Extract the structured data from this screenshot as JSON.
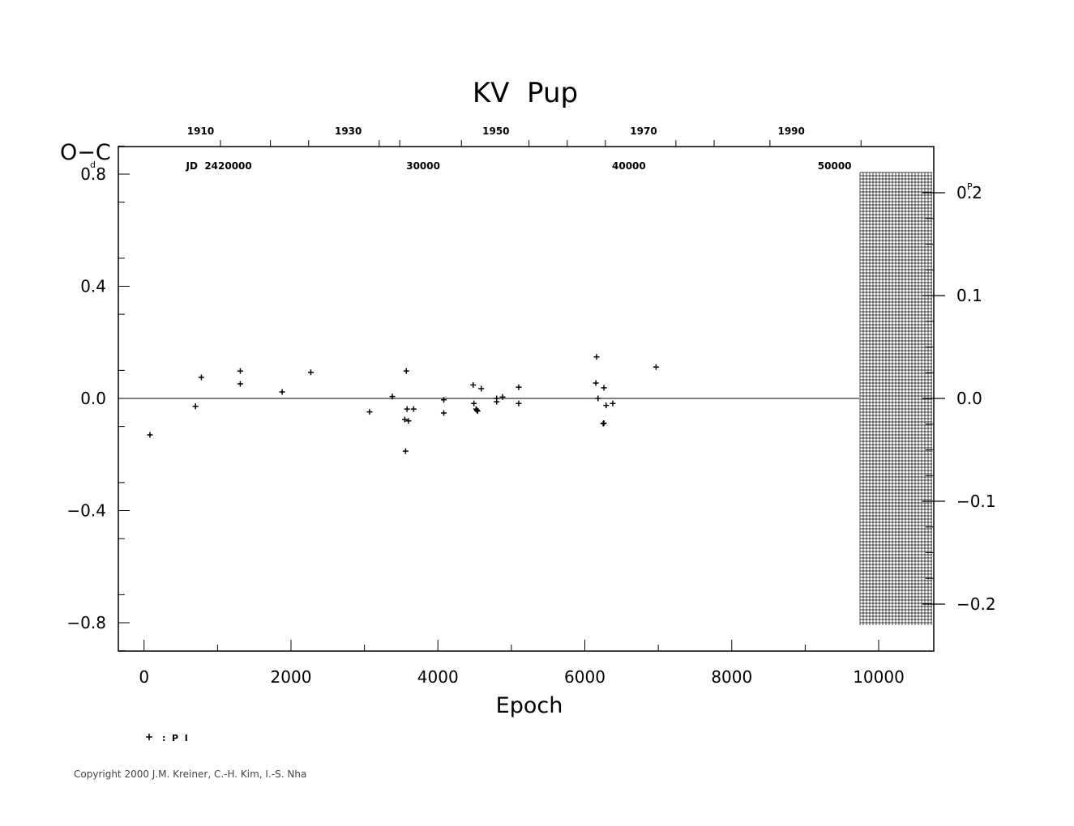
{
  "chart_data": {
    "type": "scatter",
    "title": "KV  Pup",
    "xlabel": "Epoch",
    "ylabel": "O−C",
    "ylabel_unit": "d",
    "right_axis_unit": "P",
    "xlim": [
      -350,
      10750
    ],
    "ylim": [
      -0.9,
      0.9
    ],
    "grid": false,
    "legend": "bottom-left",
    "x_ticks": [
      0,
      2000,
      4000,
      6000,
      8000,
      10000
    ],
    "x_tick_labels": [
      "0",
      "2000",
      "4000",
      "6000",
      "8000",
      "10000"
    ],
    "y_ticks": [
      0.8,
      0.4,
      0.0,
      -0.4,
      -0.8
    ],
    "y_tick_labels": [
      "0.8",
      "0.4",
      "0.0",
      "−0.4",
      "−0.8"
    ],
    "right_ticks": [
      0.2,
      0.1,
      0.0,
      -0.1,
      -0.2
    ],
    "right_tick_labels": [
      "0.2",
      "0.1",
      "0.0",
      "−0.1",
      "−0.2"
    ],
    "top_year_labels": [
      {
        "label": "1910",
        "epoch": 770
      },
      {
        "label": "1930",
        "epoch": 2780
      },
      {
        "label": "1950",
        "epoch": 4790
      },
      {
        "label": "1970",
        "epoch": 6800
      },
      {
        "label": "1990",
        "epoch": 8810
      }
    ],
    "top_year_ticks": [
      1040,
      1720,
      2240,
      3200,
      3480,
      4320,
      5240,
      5760,
      6280,
      7240,
      7760,
      8520,
      9760
    ],
    "jd_labels": [
      {
        "label": "JD  2420000",
        "epoch": 1020
      },
      {
        "label": "30000",
        "epoch": 3800
      },
      {
        "label": "40000",
        "epoch": 6600
      },
      {
        "label": "50000",
        "epoch": 9400
      }
    ],
    "series": [
      {
        "name": "P I",
        "marker": "+",
        "x": [
          80,
          700,
          780,
          1310,
          1310,
          1880,
          2270,
          3070,
          3380,
          3550,
          3570,
          3580,
          3560,
          3600,
          3670,
          4080,
          4080,
          4480,
          4490,
          4520,
          4530,
          4540,
          4590,
          4800,
          4800,
          4880,
          5100,
          5100,
          6150,
          6160,
          6180,
          6250,
          6260,
          6260,
          6290,
          6380,
          6970
        ],
        "y": [
          -0.13,
          -0.028,
          0.075,
          0.098,
          0.052,
          0.023,
          0.093,
          -0.048,
          0.007,
          -0.075,
          0.098,
          -0.038,
          -0.188,
          -0.08,
          -0.038,
          -0.005,
          -0.052,
          0.048,
          -0.018,
          -0.038,
          -0.042,
          -0.045,
          0.035,
          0.0,
          -0.012,
          0.005,
          0.04,
          -0.018,
          0.055,
          0.148,
          0.0,
          -0.09,
          -0.088,
          0.038,
          -0.025,
          -0.018,
          0.112
        ]
      }
    ],
    "legend_label": ":  P  I"
  },
  "copyright": "Copyright 2000 J.M. Kreiner, C.-H. Kim, I.-S. Nha"
}
